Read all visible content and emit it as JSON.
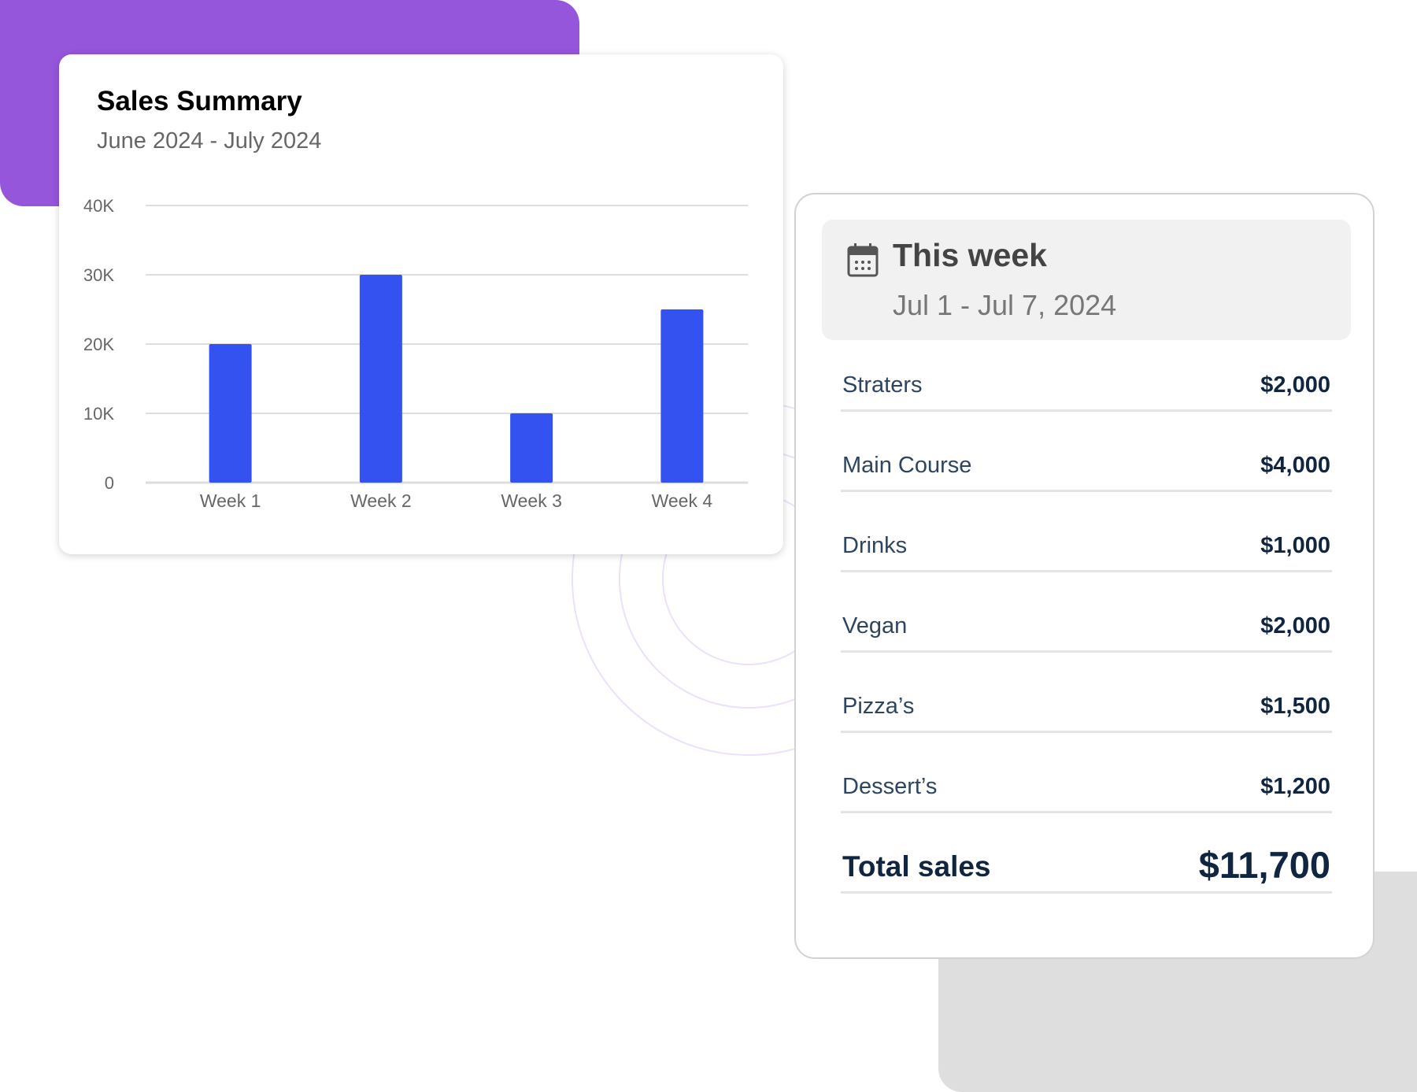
{
  "colors": {
    "accent_purple": "#9656dc",
    "bar": "#3452f0",
    "gray_block": "#dedede",
    "ring": "#ece0fa"
  },
  "chart_data": {
    "type": "bar",
    "title": "Sales Summary",
    "subtitle": "June 2024 - July 2024",
    "categories": [
      "Week 1",
      "Week 2",
      "Week 3",
      "Week 4"
    ],
    "values": [
      20000,
      30000,
      10000,
      25000
    ],
    "yticks": [
      "0",
      "10K",
      "20K",
      "30K",
      "40K"
    ],
    "ytick_values": [
      0,
      10000,
      20000,
      30000,
      40000
    ],
    "ylim": [
      0,
      40000
    ],
    "xlabel": "",
    "ylabel": "",
    "grid": true
  },
  "week": {
    "icon": "calendar-icon",
    "title": "This week",
    "date_range": "Jul 1 - Jul 7, 2024",
    "items": [
      {
        "label": "Straters",
        "value": "$2,000"
      },
      {
        "label": "Main Course",
        "value": "$4,000"
      },
      {
        "label": "Drinks",
        "value": "$1,000"
      },
      {
        "label": "Vegan",
        "value": "$2,000"
      },
      {
        "label": "Pizza’s",
        "value": "$1,500"
      },
      {
        "label": "Dessert’s",
        "value": "$1,200"
      }
    ],
    "total_label": "Total sales",
    "total_value": "$11,700"
  }
}
